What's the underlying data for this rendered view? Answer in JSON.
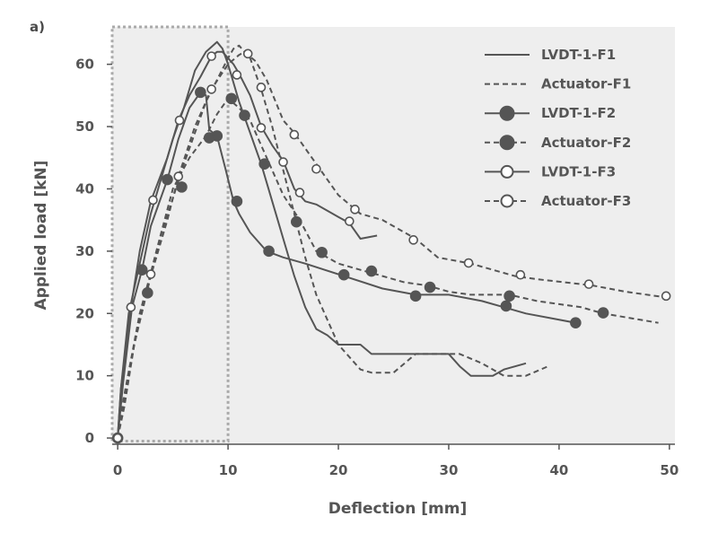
{
  "colors": {
    "plot_background": "#eeeeee",
    "series_line": "#555555",
    "zoom_box": "#aaaaaa",
    "axis": "#555555",
    "text": "#555555"
  },
  "chart_data": {
    "type": "line",
    "panel_label": "a)",
    "title": "",
    "xlabel": "Deflection [mm]",
    "ylabel": "Applied load [kN]",
    "xlim": [
      -0.5,
      50.5
    ],
    "ylim": [
      -1,
      66
    ],
    "xticks": [
      0,
      10,
      20,
      30,
      40,
      50
    ],
    "yticks": [
      0,
      10,
      20,
      30,
      40,
      50,
      60
    ],
    "grid": false,
    "legend_position": "top-right",
    "highlight_box": {
      "x_range": [
        -0.5,
        10
      ],
      "y_range": [
        -0.5,
        66
      ],
      "style": "dotted"
    },
    "series": [
      {
        "name": "LVDT-1-F1",
        "line_style": "solid",
        "marker": "none",
        "x": [
          0,
          0.3,
          1,
          2,
          3,
          4,
          5,
          6,
          7,
          8,
          9,
          9.5,
          10,
          11,
          12,
          13,
          14,
          15,
          16,
          17,
          18,
          19,
          20,
          21,
          22,
          23,
          24,
          26,
          28,
          30,
          31,
          32,
          34,
          35,
          37
        ],
        "y": [
          0,
          8,
          20,
          28,
          36,
          42,
          48,
          53,
          59,
          62,
          63.6,
          62.5,
          60,
          54,
          49,
          44,
          38,
          32,
          26,
          21,
          17.5,
          16.5,
          15,
          15,
          15,
          13.5,
          13.5,
          13.5,
          13.5,
          13.5,
          11.5,
          10,
          10,
          11,
          12
        ]
      },
      {
        "name": "Actuator-F1",
        "line_style": "dashed",
        "marker": "none",
        "x": [
          0,
          0.5,
          2,
          4,
          6,
          8,
          10,
          10.5,
          11,
          11.5,
          12,
          13,
          14,
          15,
          16,
          17,
          18,
          19,
          20,
          21,
          22,
          23,
          25,
          27,
          29,
          31,
          33,
          35,
          37,
          39
        ],
        "y": [
          0,
          6,
          20,
          33,
          44,
          54,
          61,
          62.5,
          63,
          62,
          61,
          56,
          50,
          43,
          36,
          29,
          23,
          19,
          15,
          13,
          11,
          10.5,
          10.5,
          13.5,
          13.5,
          13.5,
          12,
          10,
          10,
          11.5
        ]
      },
      {
        "name": "LVDT-1-F2",
        "line_style": "solid",
        "marker": "filled",
        "x": [
          0,
          0.5,
          1.3,
          2.2,
          3,
          4.5,
          5.5,
          6.5,
          7.5,
          8,
          8.3,
          9,
          9.8,
          10.5,
          11,
          12,
          13.5,
          15,
          17,
          20.5,
          24,
          27,
          30,
          33,
          35,
          37,
          41.5
        ],
        "y": [
          0,
          9,
          21,
          27,
          34,
          41.5,
          48,
          53,
          55.5,
          55,
          49.5,
          48.5,
          43,
          38,
          36,
          33,
          30,
          29,
          28,
          26,
          24,
          23,
          23,
          22,
          21,
          20,
          18.5
        ],
        "markers_x": [
          2.2,
          4.5,
          7.5,
          9,
          10.8,
          13.7,
          20.5,
          27,
          35.2,
          41.5
        ],
        "markers_y": [
          27,
          41.5,
          55.5,
          48.5,
          38,
          30,
          26.2,
          22.8,
          21.2,
          18.5
        ]
      },
      {
        "name": "Actuator-F2",
        "line_style": "dashed",
        "marker": "filled",
        "x": [
          0,
          0.6,
          1.5,
          2.5,
          3.5,
          5,
          6.5,
          8,
          9,
          10,
          11,
          12,
          13,
          14,
          15,
          16.5,
          18,
          20,
          22,
          24,
          26,
          28,
          30,
          32,
          35.5,
          38,
          42,
          44,
          49
        ],
        "y": [
          0,
          5,
          15,
          23,
          30,
          40,
          45,
          48.5,
          52,
          54.5,
          53,
          51,
          47,
          43,
          39,
          35,
          30,
          28,
          27,
          26,
          25,
          24.5,
          23.5,
          23,
          23,
          22,
          21,
          20,
          18.5
        ],
        "markers_x": [
          0,
          2.7,
          5.8,
          8.3,
          10.3,
          11.5,
          13.3,
          16.2,
          18.5,
          23,
          28.3,
          35.5,
          44
        ],
        "markers_y": [
          0,
          23.3,
          40.3,
          48.2,
          54.5,
          51.8,
          44,
          34.7,
          29.8,
          26.8,
          24.2,
          22.8,
          20.1
        ]
      },
      {
        "name": "LVDT-1-F3",
        "line_style": "solid",
        "marker": "open",
        "x": [
          0,
          0.3,
          1.2,
          2,
          3,
          4.5,
          5.5,
          6.5,
          7.5,
          8.5,
          9,
          9.5,
          10,
          10.5,
          11,
          12,
          13,
          14,
          15,
          16,
          17,
          18,
          19,
          20,
          21,
          22,
          23.5
        ],
        "y": [
          0,
          8,
          21,
          30,
          38,
          45,
          51,
          55,
          58,
          61.3,
          62,
          62,
          61,
          60,
          58.5,
          55,
          50,
          47,
          44.5,
          40,
          38,
          37.5,
          36.5,
          35.5,
          34.5,
          32,
          32.5
        ],
        "markers_x": [
          0,
          1.2,
          3.2,
          5.6,
          8.5,
          10.8,
          13,
          15,
          16.5,
          21
        ],
        "markers_y": [
          0,
          21,
          38.2,
          51,
          61.3,
          58.3,
          49.8,
          44.3,
          39.4,
          34.8
        ]
      },
      {
        "name": "Actuator-F3",
        "line_style": "dashed",
        "marker": "open",
        "x": [
          0,
          0.5,
          1.5,
          3,
          4.5,
          5.5,
          7,
          8.5,
          10,
          11,
          11.5,
          12.5,
          13.5,
          15,
          16,
          18,
          20,
          22,
          24,
          27,
          29,
          32,
          36,
          38,
          43,
          46,
          50
        ],
        "y": [
          0,
          5,
          15,
          26,
          35,
          42,
          50,
          56,
          60,
          61.5,
          62,
          60.5,
          57.5,
          51,
          49,
          44,
          39,
          36,
          35,
          32,
          29,
          28,
          26,
          25.5,
          24.5,
          23.5,
          22.5
        ],
        "markers_x": [
          0,
          3,
          5.5,
          8.5,
          11.8,
          13,
          16,
          18,
          21.5,
          26.8,
          31.8,
          36.5,
          42.7,
          49.7
        ],
        "markers_y": [
          0,
          26.3,
          42,
          56,
          61.7,
          56.3,
          48.7,
          43.2,
          36.7,
          31.8,
          28.1,
          26.2,
          24.7,
          22.8
        ]
      }
    ]
  }
}
